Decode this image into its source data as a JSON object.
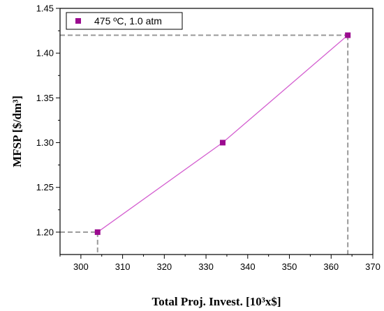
{
  "chart_data": {
    "type": "line",
    "xlabel": "Total Proj. Invest. [10³x$]",
    "ylabel": "MFSP [$/dm³]",
    "xlim": [
      295,
      370
    ],
    "ylim": [
      1.175,
      1.45
    ],
    "xticks": [
      300,
      310,
      320,
      330,
      340,
      350,
      360,
      370
    ],
    "yticks": [
      1.2,
      1.25,
      1.3,
      1.35,
      1.4,
      1.45
    ],
    "xtick_labels": [
      "300",
      "310",
      "320",
      "330",
      "340",
      "350",
      "360",
      "370"
    ],
    "ytick_labels": [
      "1.20",
      "1.25",
      "1.30",
      "1.35",
      "1.40",
      "1.45"
    ],
    "series": [
      {
        "name": "475 ºC, 1.0 atm",
        "x": [
          304,
          334,
          364
        ],
        "y": [
          1.2,
          1.3,
          1.42
        ],
        "color": "#9b0a8f"
      }
    ],
    "guides": [
      {
        "x": 304,
        "y": 1.2
      },
      {
        "x": 364,
        "y": 1.42
      }
    ],
    "guide_color": "#999999",
    "line_color": "#d45fd0",
    "legend_position": "top-left",
    "grid": false
  }
}
